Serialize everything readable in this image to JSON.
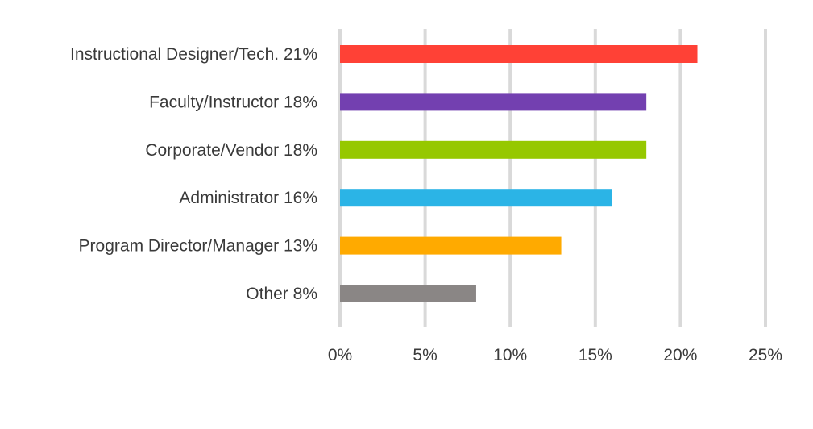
{
  "chart_data": {
    "type": "bar",
    "orientation": "horizontal",
    "title": "",
    "xlabel": "",
    "ylabel": "",
    "categories": [
      "Instructional Designer/Tech. 21%",
      "Faculty/Instructor 18%",
      "Corporate/Vendor 18%",
      "Administrator 16%",
      "Program Director/Manager 13%",
      "Other 8%"
    ],
    "values": [
      21,
      18,
      18,
      16,
      13,
      8
    ],
    "colors": [
      "#ff4136",
      "#7340b0",
      "#96c800",
      "#2bb4e6",
      "#ffaa00",
      "#8a8685"
    ],
    "xlim": [
      0,
      25
    ],
    "xticks": [
      0,
      5,
      10,
      15,
      20,
      25
    ],
    "xtick_labels": [
      "0%",
      "5%",
      "10%",
      "15%",
      "20%",
      "25%"
    ],
    "grid": true,
    "legend": "none"
  }
}
